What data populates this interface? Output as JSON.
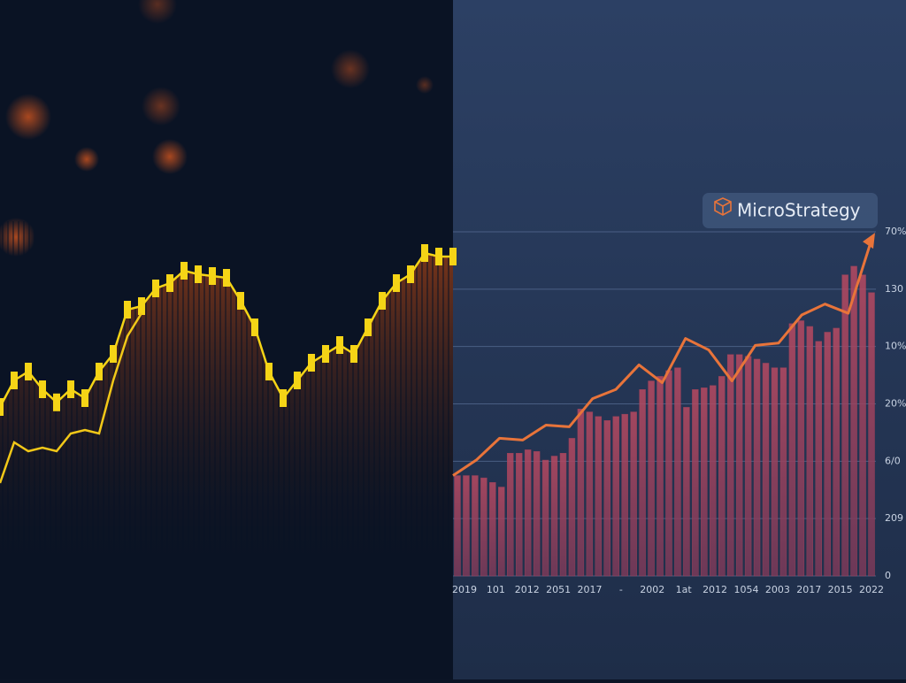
{
  "chart_data": [
    {
      "type": "line",
      "ylim": [
        0,
        100
      ],
      "series": [
        {
          "color": "#f5d416",
          "values": [
            47.5,
            55,
            57.5,
            52.5,
            48.8,
            52.5,
            50,
            57.5,
            62.5,
            75,
            76,
            81,
            82.5,
            86,
            85,
            84.5,
            84,
            77.5,
            70,
            57.5,
            50,
            55,
            60,
            62.5,
            65,
            62.5,
            70,
            77.5,
            82.5,
            85,
            91,
            90,
            90
          ]
        },
        {
          "color": "#f2c818",
          "values": [
            26,
            37.5,
            35,
            36,
            35,
            40,
            41,
            40,
            55,
            67.5,
            74
          ]
        }
      ]
    },
    {
      "type": "bar",
      "title": "MicroStrategy",
      "ylim": [
        0,
        6
      ],
      "yticks": [
        {
          "value": 0,
          "label": "0"
        },
        {
          "value": 1,
          "label": "209"
        },
        {
          "value": 2,
          "label": "6/0"
        },
        {
          "value": 3,
          "label": "20%"
        },
        {
          "value": 4,
          "label": "10%"
        },
        {
          "value": 5,
          "label": "130"
        },
        {
          "value": 6,
          "label": "70%"
        }
      ],
      "grid": true,
      "color": "#a8435a",
      "x_tick_labels": [
        "2019",
        "101",
        "2012",
        "2051",
        "2017",
        "-",
        "2002",
        "1at",
        "2012",
        "1054",
        "2003",
        "2017",
        "2015",
        "2022"
      ],
      "values": [
        1.75,
        1.75,
        1.75,
        1.71,
        1.63,
        1.55,
        2.14,
        2.14,
        2.2,
        2.17,
        2.02,
        2.09,
        2.14,
        2.4,
        2.91,
        2.86,
        2.78,
        2.71,
        2.78,
        2.82,
        2.86,
        3.25,
        3.4,
        3.48,
        3.58,
        3.63,
        2.94,
        3.25,
        3.28,
        3.32,
        3.48,
        3.86,
        3.86,
        3.83,
        3.78,
        3.71,
        3.63,
        3.63,
        4.4,
        4.45,
        4.35,
        4.09,
        4.25,
        4.32,
        5.25,
        5.4,
        5.25,
        4.94
      ],
      "line": {
        "color": "#e8743a",
        "values": [
          1.75,
          2.02,
          2.4,
          2.37,
          2.63,
          2.6,
          3.09,
          3.25,
          3.68,
          3.37,
          4.14,
          3.94,
          3.4,
          4.02,
          4.06,
          4.55,
          4.74,
          4.58,
          5.86
        ]
      }
    }
  ]
}
